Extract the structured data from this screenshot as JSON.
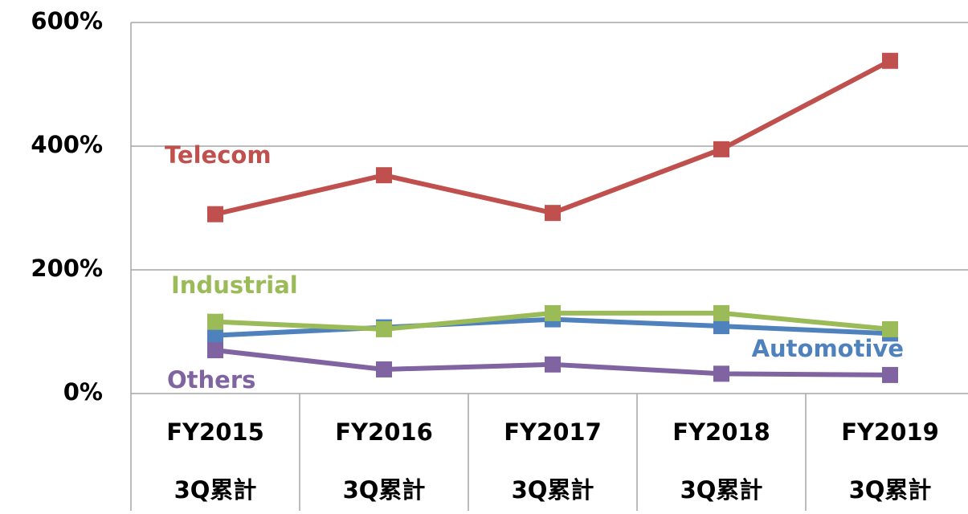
{
  "chart_data": {
    "type": "line",
    "categories": [
      "FY2015",
      "FY2016",
      "FY2017",
      "FY2018",
      "FY2019"
    ],
    "category_sublabels": [
      "3Q累計",
      "3Q累計",
      "3Q累計",
      "3Q累計",
      "3Q累計"
    ],
    "series": [
      {
        "name": "Telecom",
        "color": "#c0504d",
        "values": [
          290,
          353,
          292,
          395,
          538
        ]
      },
      {
        "name": "Automotive",
        "color": "#4f81bd",
        "values": [
          94,
          107,
          120,
          109,
          97
        ]
      },
      {
        "name": "Industrial",
        "color": "#9bbb59",
        "values": [
          116,
          104,
          130,
          130,
          104
        ]
      },
      {
        "name": "Others",
        "color": "#8064a2",
        "values": [
          70,
          39,
          47,
          32,
          30
        ]
      }
    ],
    "ylim": [
      0,
      600
    ],
    "yticks": [
      {
        "value": 0,
        "label": "0%"
      },
      {
        "value": 200,
        "label": "200%"
      },
      {
        "value": 400,
        "label": "400%"
      },
      {
        "value": 600,
        "label": "600%"
      }
    ],
    "grid": true
  }
}
